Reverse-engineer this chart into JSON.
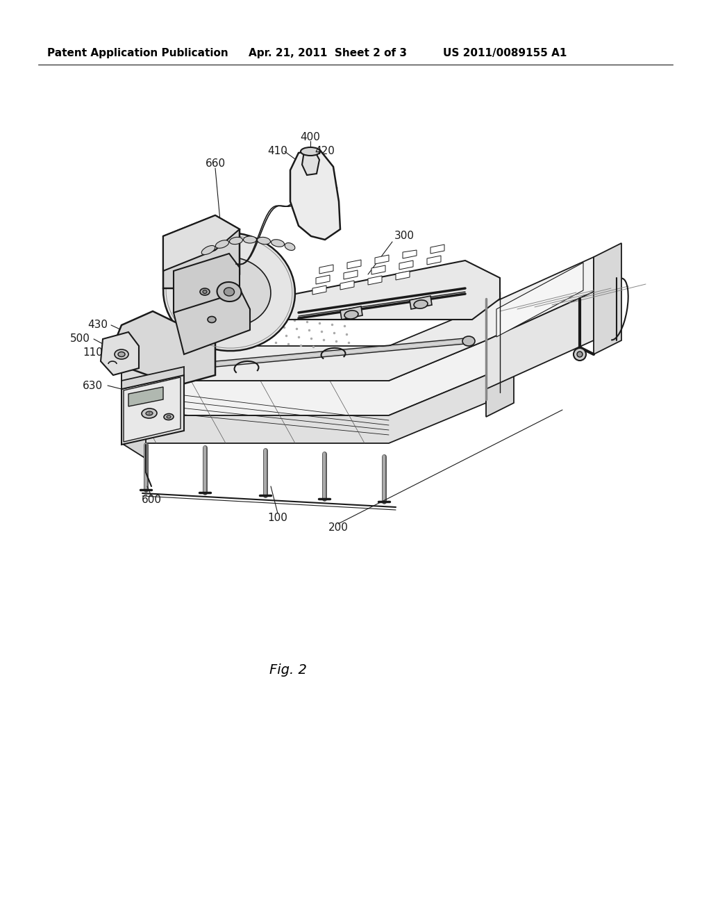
{
  "background_color": "#ffffff",
  "header_left": "Patent Application Publication",
  "header_center": "Apr. 21, 2011  Sheet 2 of 3",
  "header_right": "US 2011/0089155 A1",
  "figure_label": "Fig. 2",
  "header_fontsize": 11,
  "label_fontsize": 11,
  "fig_label_fontsize": 14,
  "lc": "#1a1a1a",
  "diagram_scale": 1.0,
  "diagram_ox": 0,
  "diagram_oy": 0
}
